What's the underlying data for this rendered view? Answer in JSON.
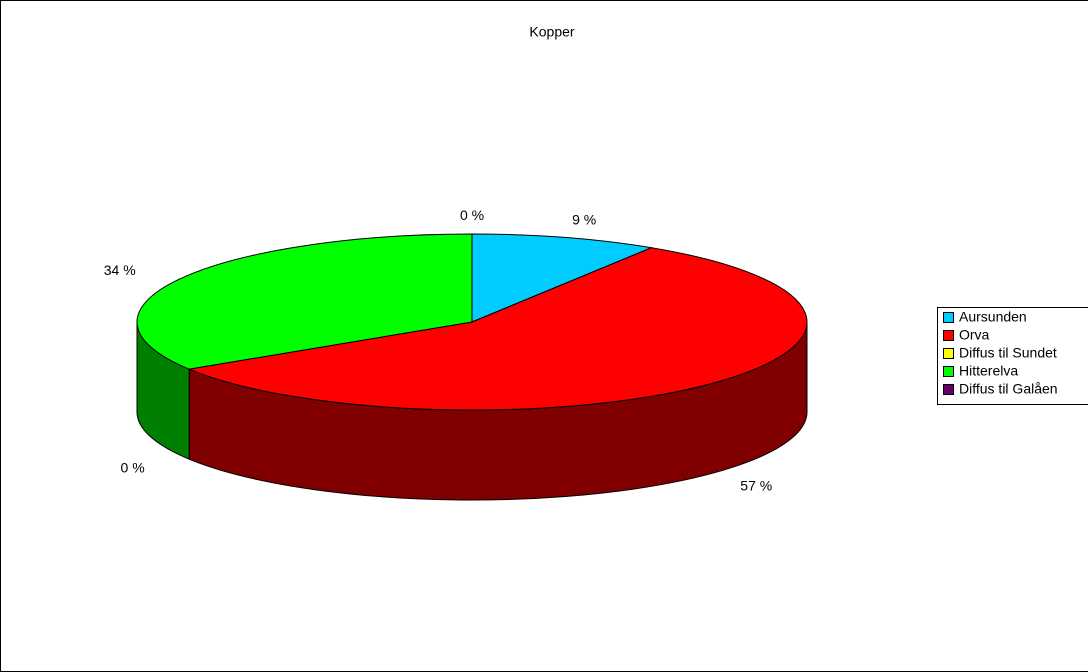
{
  "chart_data": {
    "type": "pie3d",
    "title": "Kopper",
    "categories": [
      "Aursunden",
      "Orva",
      "Diffus til Sundet",
      "Hitterelva",
      "Diffus til Galåen"
    ],
    "values": [
      9,
      57,
      0,
      34,
      0
    ],
    "value_labels": [
      "9 %",
      "57 %",
      "0 %",
      "34 %",
      "0 %"
    ],
    "colors": [
      "#00ccff",
      "#ff0000",
      "#ffff00",
      "#00ff00",
      "#660066"
    ],
    "legend": "right"
  }
}
